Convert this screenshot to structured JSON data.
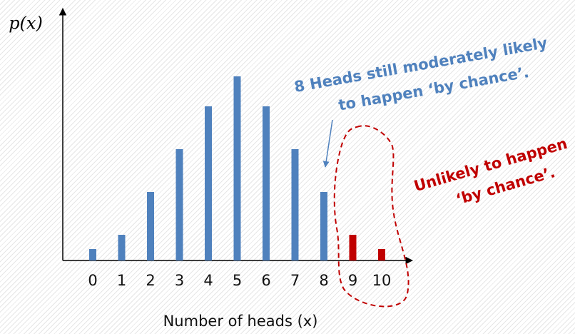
{
  "chart_data": {
    "type": "bar",
    "y_label": "p(x)",
    "x_label": "Number of heads (x)",
    "categories": [
      "0",
      "1",
      "2",
      "3",
      "4",
      "5",
      "6",
      "7",
      "8",
      "9",
      "10"
    ],
    "values": [
      16,
      36,
      96,
      156,
      216,
      258,
      216,
      156,
      96,
      36,
      16
    ],
    "colors": [
      "#4f81bd",
      "#4f81bd",
      "#4f81bd",
      "#4f81bd",
      "#4f81bd",
      "#4f81bd",
      "#4f81bd",
      "#4f81bd",
      "#4f81bd",
      "#c00000",
      "#c00000"
    ],
    "ylim": [
      0,
      270
    ],
    "annotations": [
      {
        "lines": [
          "8 Heads still moderately likely",
          "to happen ‘by chance’."
        ],
        "color": "#4f81bd"
      },
      {
        "lines": [
          "Unlikely to happen",
          "‘by chance’."
        ],
        "color": "#c00000"
      }
    ]
  }
}
